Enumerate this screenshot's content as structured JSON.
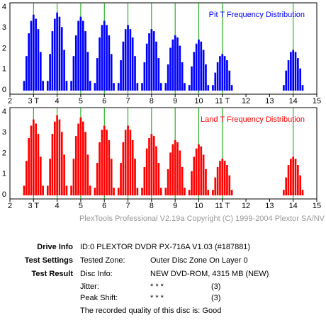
{
  "chart_data": [
    {
      "type": "bar",
      "title": "Pit T Frequency Distribution",
      "color": "#0000ff",
      "ref_color": "#00a000",
      "xlim": [
        2,
        15
      ],
      "xticks": [
        2,
        {
          "value": 3,
          "label": "3 T"
        },
        4,
        5,
        6,
        7,
        8,
        9,
        10,
        {
          "value": 11,
          "label": "11 T"
        },
        12,
        13,
        14,
        15
      ],
      "ylim": [
        0,
        4
      ],
      "yticks": [
        0,
        1,
        2,
        3,
        4
      ],
      "reference_x": [
        3,
        4,
        5,
        6,
        7,
        8,
        9,
        10,
        11,
        14
      ],
      "x": [
        2.6,
        2.7,
        2.8,
        2.9,
        3.0,
        3.1,
        3.2,
        3.3,
        3.4,
        3.6,
        3.7,
        3.8,
        3.9,
        4.0,
        4.1,
        4.2,
        4.3,
        4.4,
        4.6,
        4.7,
        4.8,
        4.9,
        5.0,
        5.1,
        5.2,
        5.3,
        5.4,
        5.6,
        5.7,
        5.8,
        5.9,
        6.0,
        6.1,
        6.2,
        6.3,
        6.4,
        6.6,
        6.7,
        6.8,
        6.9,
        7.0,
        7.1,
        7.2,
        7.3,
        7.4,
        7.6,
        7.7,
        7.8,
        7.9,
        8.0,
        8.1,
        8.2,
        8.3,
        8.4,
        8.6,
        8.7,
        8.8,
        8.9,
        9.0,
        9.1,
        9.2,
        9.3,
        9.4,
        9.6,
        9.7,
        9.8,
        9.9,
        10.0,
        10.1,
        10.2,
        10.3,
        10.4,
        10.6,
        10.7,
        10.8,
        10.9,
        11.0,
        11.1,
        11.2,
        11.3,
        11.4,
        13.6,
        13.7,
        13.8,
        13.9,
        14.0,
        14.1,
        14.2,
        14.3,
        14.4
      ],
      "values": [
        0.4,
        1.6,
        2.7,
        3.3,
        3.6,
        3.4,
        2.9,
        1.8,
        0.4,
        0.4,
        1.7,
        2.8,
        3.4,
        3.7,
        3.5,
        3.0,
        1.9,
        0.4,
        0.4,
        1.6,
        2.6,
        3.3,
        3.5,
        3.3,
        2.8,
        1.8,
        0.4,
        0.3,
        1.5,
        2.5,
        3.1,
        3.3,
        3.1,
        2.6,
        1.7,
        0.3,
        0.3,
        1.4,
        2.3,
        2.9,
        3.1,
        2.9,
        2.5,
        1.6,
        0.3,
        0.3,
        1.3,
        2.2,
        2.7,
        2.9,
        2.8,
        2.3,
        1.5,
        0.3,
        0.3,
        1.2,
        2.0,
        2.4,
        2.6,
        2.5,
        2.1,
        1.3,
        0.3,
        0.2,
        1.1,
        1.8,
        2.2,
        2.4,
        2.3,
        1.9,
        1.2,
        0.2,
        0.2,
        0.8,
        1.3,
        1.6,
        1.7,
        1.6,
        1.4,
        0.9,
        0.2,
        0.2,
        0.9,
        1.4,
        1.8,
        1.9,
        1.8,
        1.5,
        1.0,
        0.2
      ]
    },
    {
      "type": "bar",
      "title": "Land T Frequency Distribution",
      "color": "#ff0000",
      "ref_color": "#00a000",
      "xlim": [
        2,
        15
      ],
      "xticks": [
        2,
        {
          "value": 3,
          "label": "3 T"
        },
        4,
        5,
        6,
        7,
        8,
        9,
        10,
        {
          "value": 11,
          "label": "11 T"
        },
        12,
        13,
        14,
        15
      ],
      "ylim": [
        0,
        4
      ],
      "yticks": [
        0,
        1,
        2,
        3,
        4
      ],
      "reference_x": [
        3,
        4,
        5,
        6,
        7,
        8,
        9,
        10,
        11,
        14
      ],
      "x": [
        2.6,
        2.7,
        2.8,
        2.9,
        3.0,
        3.1,
        3.2,
        3.3,
        3.4,
        3.6,
        3.7,
        3.8,
        3.9,
        4.0,
        4.1,
        4.2,
        4.3,
        4.4,
        4.6,
        4.7,
        4.8,
        4.9,
        5.0,
        5.1,
        5.2,
        5.3,
        5.4,
        5.6,
        5.7,
        5.8,
        5.9,
        6.0,
        6.1,
        6.2,
        6.3,
        6.4,
        6.6,
        6.7,
        6.8,
        6.9,
        7.0,
        7.1,
        7.2,
        7.3,
        7.4,
        7.6,
        7.7,
        7.8,
        7.9,
        8.0,
        8.1,
        8.2,
        8.3,
        8.4,
        8.6,
        8.7,
        8.8,
        8.9,
        9.0,
        9.1,
        9.2,
        9.3,
        9.4,
        9.6,
        9.7,
        9.8,
        9.9,
        10.0,
        10.1,
        10.2,
        10.3,
        10.4,
        10.6,
        10.7,
        10.8,
        10.9,
        11.0,
        11.1,
        11.2,
        11.3,
        11.4,
        13.6,
        13.7,
        13.8,
        13.9,
        14.0,
        14.1,
        14.2,
        14.3,
        14.4
      ],
      "values": [
        0.4,
        1.6,
        2.7,
        3.3,
        3.6,
        3.4,
        2.9,
        1.8,
        0.4,
        0.4,
        1.7,
        2.9,
        3.5,
        3.8,
        3.6,
        3.0,
        1.9,
        0.4,
        0.4,
        1.7,
        2.8,
        3.4,
        3.7,
        3.5,
        3.0,
        1.9,
        0.4,
        0.3,
        1.5,
        2.5,
        3.1,
        3.3,
        3.1,
        2.6,
        1.7,
        0.3,
        0.3,
        1.5,
        2.5,
        3.1,
        3.3,
        3.1,
        2.6,
        1.7,
        0.3,
        0.3,
        1.3,
        2.2,
        2.7,
        2.9,
        2.8,
        2.3,
        1.5,
        0.3,
        0.3,
        1.2,
        2.0,
        2.4,
        2.6,
        2.5,
        2.1,
        1.3,
        0.3,
        0.2,
        1.1,
        1.8,
        2.2,
        2.4,
        2.3,
        1.9,
        1.2,
        0.2,
        0.2,
        0.8,
        1.3,
        1.6,
        1.7,
        1.6,
        1.4,
        0.9,
        0.2,
        0.2,
        0.8,
        1.4,
        1.7,
        1.8,
        1.7,
        1.4,
        0.9,
        0.2
      ]
    }
  ],
  "footer": "PlexTools Professional V2.19a Copyright (C) 1999-2004 Plextor SA/NV",
  "info": {
    "drive_label": "Drive Info",
    "drive_value": "ID:0 PLEXTOR DVDR PX-716A V1.03 (#187881)",
    "settings_label": "Test Settings",
    "zone_label": "Tested Zone:",
    "zone_value": "Outer Disc Zone On Layer 0",
    "result_label": "Test Result",
    "disc_label": "Disc Info:",
    "disc_value": "NEW DVD-ROM, 4315 MB (NEW)",
    "jitter_label": "Jitter:",
    "jitter_stars": "* * *",
    "jitter_value": "(3)",
    "shift_label": "Peak Shift:",
    "shift_stars": "* * *",
    "shift_value": "(3)",
    "quality": "The recorded quality of this disc is: Good"
  }
}
